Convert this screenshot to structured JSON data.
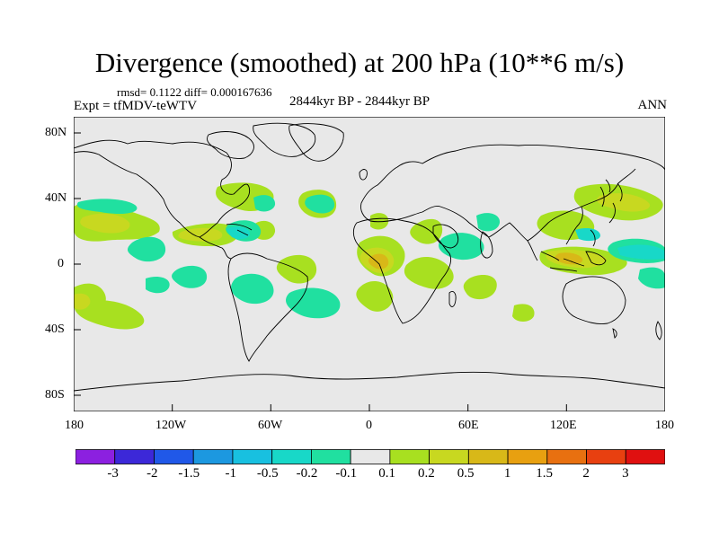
{
  "title": "Divergence (smoothed) at 200 hPa (10**6 m/s)",
  "stats": "rmsd= 0.1122 diff= 0.000167636",
  "experiment": "Expt = tfMDV-teWTV",
  "period": "2844kyr BP - 2844kyr BP",
  "season": "ANN",
  "map": {
    "projection": "cylindrical equidistant",
    "lat_labels": [
      "80N",
      "40N",
      "0",
      "40S",
      "80S"
    ],
    "lon_labels": [
      "180",
      "120W",
      "60W",
      "0",
      "60E",
      "120E",
      "180"
    ],
    "background_color": "#e8e8e8",
    "coastline_color": "#000000"
  },
  "colorbar": {
    "colors": [
      "#8c20e0",
      "#3c28d8",
      "#2058e8",
      "#1c98e0",
      "#18c0e0",
      "#18d8c8",
      "#20e0a0",
      "#e8e8e8",
      "#a8e020",
      "#c8d820",
      "#d8b818",
      "#e8a010",
      "#e87010",
      "#e84010",
      "#e01010"
    ],
    "labels": [
      "-3",
      "-2",
      "-1.5",
      "-1",
      "-0.5",
      "-0.2",
      "-0.1",
      "0.1",
      "0.2",
      "0.5",
      "1",
      "1.5",
      "2",
      "3"
    ]
  }
}
